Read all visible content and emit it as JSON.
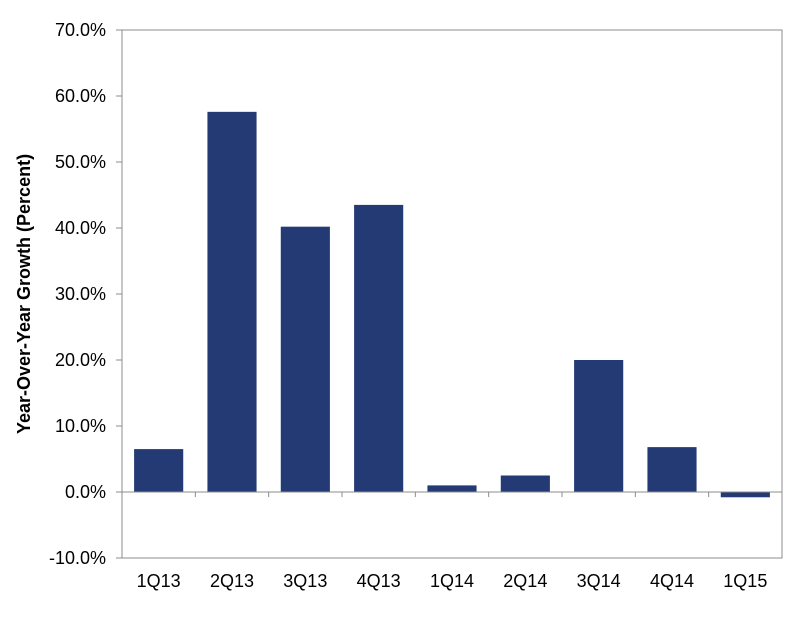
{
  "chart_data": {
    "type": "bar",
    "title": "",
    "xlabel": "",
    "ylabel": "Year-Over-Year  Growth (Percent)",
    "categories": [
      "1Q13",
      "2Q13",
      "3Q13",
      "4Q13",
      "1Q14",
      "2Q14",
      "3Q14",
      "4Q14",
      "1Q15"
    ],
    "values": [
      6.5,
      57.6,
      40.2,
      43.5,
      1.0,
      2.5,
      20.0,
      6.8,
      -0.8
    ],
    "unit": "%",
    "ylim": [
      -10,
      70
    ],
    "yticks": [
      -10,
      0,
      10,
      20,
      30,
      40,
      50,
      60,
      70
    ],
    "ytick_labels": [
      "-10.0%",
      "0.0%",
      "10.0%",
      "20.0%",
      "30.0%",
      "40.0%",
      "50.0%",
      "60.0%",
      "70.0%"
    ],
    "grid": false,
    "legend": "none",
    "bar_color": "#233a75",
    "axis_color": "#8c8c8c"
  }
}
